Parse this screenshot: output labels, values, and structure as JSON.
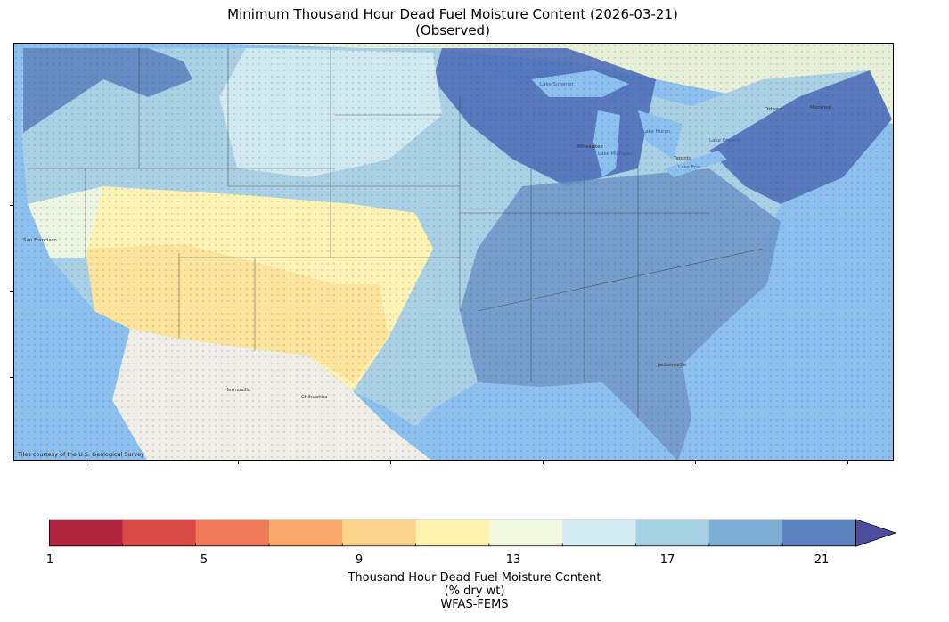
{
  "title_line1": "Minimum Thousand Hour Dead Fuel Moisture Content (2026-03-21)",
  "title_line2": "(Observed)",
  "map_credit": "Tiles courtesy of the U.S. Geological Survey",
  "colorbar": {
    "tick_labels": [
      "1",
      "5",
      "9",
      "13",
      "17",
      "21"
    ],
    "colors": [
      "#b2243e",
      "#d94a46",
      "#ef7a5a",
      "#faa86c",
      "#fdd48b",
      "#fff3b0",
      "#f2f8e0",
      "#d3ecf3",
      "#a8d0e4",
      "#7eaed4",
      "#5c82c0",
      "#4d4d9f"
    ],
    "extend": "max",
    "label_line1": "Thousand Hour Dead Fuel Moisture Content",
    "label_line2": "(% dry wt)",
    "label_line3": "WFAS-FEMS"
  },
  "map_places": [
    "Lake Superior",
    "Lake Michigan",
    "Lake Huron",
    "Lake Erie",
    "Lake Ontario",
    "San Francisco",
    "Chihuahua",
    "Hermosillo",
    "Jacksonville",
    "Ottawa",
    "Montreal",
    "Toronto",
    "Milwaukee"
  ]
}
